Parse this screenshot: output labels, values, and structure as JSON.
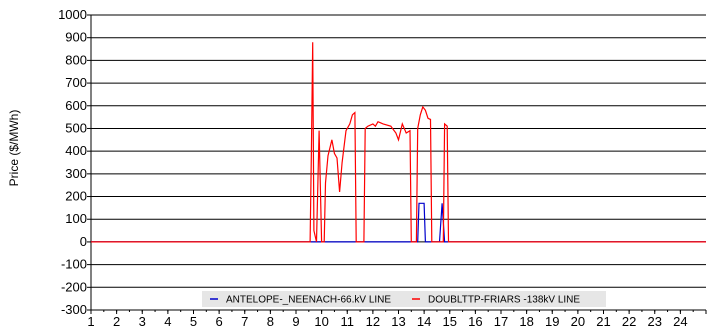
{
  "chart_data": {
    "type": "line",
    "title": "",
    "xlabel": "",
    "ylabel": "Price ($/MWh)",
    "xlim": [
      1,
      25
    ],
    "ylim": [
      -300,
      1000
    ],
    "x_ticks": [
      "1",
      "2",
      "3",
      "4",
      "5",
      "6",
      "7",
      "8",
      "9",
      "10",
      "11",
      "12",
      "13",
      "14",
      "15",
      "16",
      "17",
      "18",
      "19",
      "20",
      "21",
      "22",
      "23",
      "24"
    ],
    "y_ticks": [
      "-300",
      "-200",
      "-100",
      "0",
      "100",
      "200",
      "300",
      "400",
      "500",
      "600",
      "700",
      "800",
      "900",
      "1000"
    ],
    "y_tick_values": [
      -300,
      -200,
      -100,
      0,
      100,
      200,
      300,
      400,
      500,
      600,
      700,
      800,
      900,
      1000
    ],
    "grid": "horizontal",
    "legend": "bottom-center",
    "series": [
      {
        "name": "ANTELOPE-_NEENACH-66.kV LINE",
        "color": "#0000cc",
        "points": [
          [
            1,
            0
          ],
          [
            13.75,
            0
          ],
          [
            13.8,
            170
          ],
          [
            14.0,
            170
          ],
          [
            14.05,
            0
          ],
          [
            14.6,
            0
          ],
          [
            14.7,
            170
          ],
          [
            14.8,
            0
          ],
          [
            25,
            0
          ]
        ]
      },
      {
        "name": "DOUBLTTP-FRIARS -138kV LINE",
        "color": "#ff0000",
        "points": [
          [
            1,
            0
          ],
          [
            9.55,
            0
          ],
          [
            9.6,
            400
          ],
          [
            9.65,
            880
          ],
          [
            9.7,
            50
          ],
          [
            9.8,
            0
          ],
          [
            9.9,
            490
          ],
          [
            10.0,
            0
          ],
          [
            10.1,
            0
          ],
          [
            10.15,
            260
          ],
          [
            10.25,
            380
          ],
          [
            10.4,
            450
          ],
          [
            10.5,
            390
          ],
          [
            10.6,
            370
          ],
          [
            10.7,
            220
          ],
          [
            10.8,
            350
          ],
          [
            10.95,
            490
          ],
          [
            11.1,
            520
          ],
          [
            11.2,
            560
          ],
          [
            11.3,
            570
          ],
          [
            11.35,
            0
          ],
          [
            11.65,
            0
          ],
          [
            11.7,
            500
          ],
          [
            11.8,
            510
          ],
          [
            12.0,
            520
          ],
          [
            12.1,
            510
          ],
          [
            12.2,
            530
          ],
          [
            12.4,
            520
          ],
          [
            12.7,
            510
          ],
          [
            12.9,
            480
          ],
          [
            13.0,
            450
          ],
          [
            13.15,
            520
          ],
          [
            13.3,
            480
          ],
          [
            13.45,
            490
          ],
          [
            13.5,
            0
          ],
          [
            13.7,
            0
          ],
          [
            13.75,
            500
          ],
          [
            13.85,
            560
          ],
          [
            13.95,
            595
          ],
          [
            14.05,
            580
          ],
          [
            14.15,
            545
          ],
          [
            14.25,
            540
          ],
          [
            14.3,
            0
          ],
          [
            14.75,
            0
          ],
          [
            14.8,
            520
          ],
          [
            14.9,
            510
          ],
          [
            14.95,
            0
          ],
          [
            25,
            0
          ]
        ]
      }
    ]
  }
}
